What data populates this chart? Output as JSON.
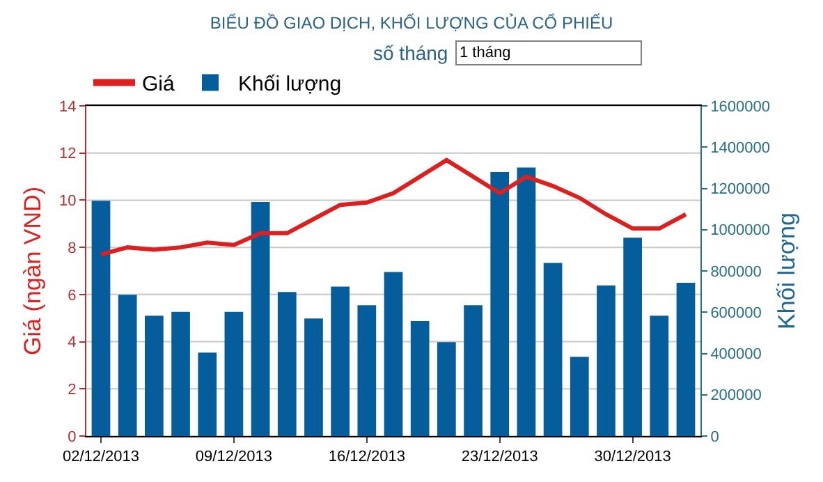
{
  "chart_data": {
    "type": "bar",
    "title": "BIỂU ĐỒ GIAO DỊCH, KHỐI LƯỢNG CỦA CỔ PHIẾU",
    "annotations": [
      "số tháng",
      "1 tháng"
    ],
    "ylabel": "Giá (ngàn VND)",
    "y2label": "Khối lượng",
    "categories": [
      "02/12/2013",
      null,
      null,
      null,
      null,
      "09/12/2013",
      null,
      null,
      null,
      null,
      "16/12/2013",
      null,
      null,
      null,
      null,
      "23/12/2013",
      null,
      null,
      null,
      null,
      "30/12/2013",
      null,
      null
    ],
    "series": [
      {
        "name": "Giá",
        "type": "line",
        "color": "#dd1f1f",
        "values": [
          7.7,
          8.0,
          7.9,
          8.0,
          8.2,
          8.1,
          8.6,
          8.6,
          9.2,
          9.8,
          9.9,
          10.3,
          11.0,
          11.7,
          11.0,
          10.3,
          11.0,
          10.6,
          10.1,
          9.4,
          8.8,
          8.8,
          9.4
        ]
      },
      {
        "name": "Khối lượng",
        "axis": "y2",
        "color": "#065d9c",
        "values": [
          1140000,
          684000,
          583000,
          602000,
          404000,
          602000,
          1134000,
          698000,
          570000,
          724000,
          634000,
          795000,
          557000,
          455000,
          634000,
          1279000,
          1301000,
          839000,
          384000,
          730000,
          961000,
          583000,
          743000
        ]
      }
    ],
    "ylim": [
      0,
      14
    ],
    "yticks": [
      0,
      2,
      4,
      6,
      8,
      10,
      12,
      14
    ],
    "y2lim": [
      0,
      1600000
    ],
    "y2ticks": [
      0,
      200000,
      400000,
      600000,
      800000,
      1000000,
      1200000,
      1400000,
      1600000
    ],
    "grid": "y",
    "legend": "top left",
    "marker": "none",
    "line_style": "solid"
  }
}
